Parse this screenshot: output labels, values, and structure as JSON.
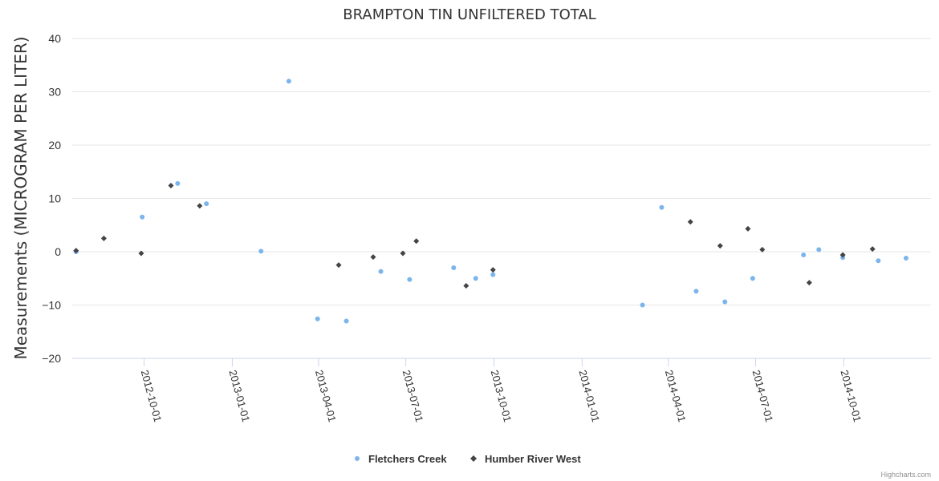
{
  "chart_data": {
    "type": "scatter",
    "title": "BRAMPTON TIN UNFILTERED TOTAL",
    "xlabel": "",
    "ylabel": "Measurements (MICROGRAM PER LITER)",
    "ylim": [
      -20,
      40
    ],
    "yticks": [
      40,
      30,
      20,
      10,
      0,
      -10,
      -20
    ],
    "ytick_labels": [
      "40",
      "30",
      "20",
      "10",
      "0",
      "−10",
      "−20"
    ],
    "xlim": [
      "2012-07-18",
      "2014-12-31"
    ],
    "xticks": [
      "2012-10-01",
      "2013-01-01",
      "2013-04-01",
      "2013-07-01",
      "2013-10-01",
      "2014-01-01",
      "2014-04-01",
      "2014-07-01",
      "2014-10-01"
    ],
    "grid": true,
    "legend_position": "bottom-center",
    "credits": "Highcharts.com",
    "series": [
      {
        "name": "Fletchers Creek",
        "color": "#7cb5ec",
        "marker": "circle",
        "points": [
          {
            "x": "2012-07-22",
            "y": 0
          },
          {
            "x": "2012-09-29",
            "y": 6.5
          },
          {
            "x": "2012-11-05",
            "y": 12.8
          },
          {
            "x": "2012-12-05",
            "y": 9
          },
          {
            "x": "2013-01-31",
            "y": 0.1
          },
          {
            "x": "2013-03-01",
            "y": 32
          },
          {
            "x": "2013-03-31",
            "y": -12.6
          },
          {
            "x": "2013-04-30",
            "y": -13
          },
          {
            "x": "2013-06-05",
            "y": -3.7
          },
          {
            "x": "2013-07-05",
            "y": -5.2
          },
          {
            "x": "2013-08-20",
            "y": -3
          },
          {
            "x": "2013-09-12",
            "y": -5
          },
          {
            "x": "2013-09-30",
            "y": -4.3
          },
          {
            "x": "2014-03-05",
            "y": -10
          },
          {
            "x": "2014-03-25",
            "y": 8.3
          },
          {
            "x": "2014-04-30",
            "y": -7.4
          },
          {
            "x": "2014-05-30",
            "y": -9.4
          },
          {
            "x": "2014-06-28",
            "y": -5
          },
          {
            "x": "2014-08-20",
            "y": -0.6
          },
          {
            "x": "2014-09-05",
            "y": 0.4
          },
          {
            "x": "2014-09-30",
            "y": -1.1
          },
          {
            "x": "2014-11-06",
            "y": -1.7
          },
          {
            "x": "2014-12-05",
            "y": -1.2
          }
        ]
      },
      {
        "name": "Humber River West",
        "color": "#434348",
        "marker": "diamond",
        "points": [
          {
            "x": "2012-07-22",
            "y": 0.2
          },
          {
            "x": "2012-08-20",
            "y": 2.5
          },
          {
            "x": "2012-09-28",
            "y": -0.3
          },
          {
            "x": "2012-10-29",
            "y": 12.4
          },
          {
            "x": "2012-11-28",
            "y": 8.6
          },
          {
            "x": "2013-04-22",
            "y": -2.5
          },
          {
            "x": "2013-05-28",
            "y": -1
          },
          {
            "x": "2013-06-28",
            "y": -0.3
          },
          {
            "x": "2013-07-12",
            "y": 2
          },
          {
            "x": "2013-09-02",
            "y": -6.4
          },
          {
            "x": "2013-09-30",
            "y": -3.4
          },
          {
            "x": "2014-04-24",
            "y": 5.6
          },
          {
            "x": "2014-05-25",
            "y": 1.1
          },
          {
            "x": "2014-06-23",
            "y": 4.3
          },
          {
            "x": "2014-07-08",
            "y": 0.4
          },
          {
            "x": "2014-08-26",
            "y": -5.8
          },
          {
            "x": "2014-09-30",
            "y": -0.6
          },
          {
            "x": "2014-10-31",
            "y": 0.5
          }
        ]
      }
    ]
  }
}
